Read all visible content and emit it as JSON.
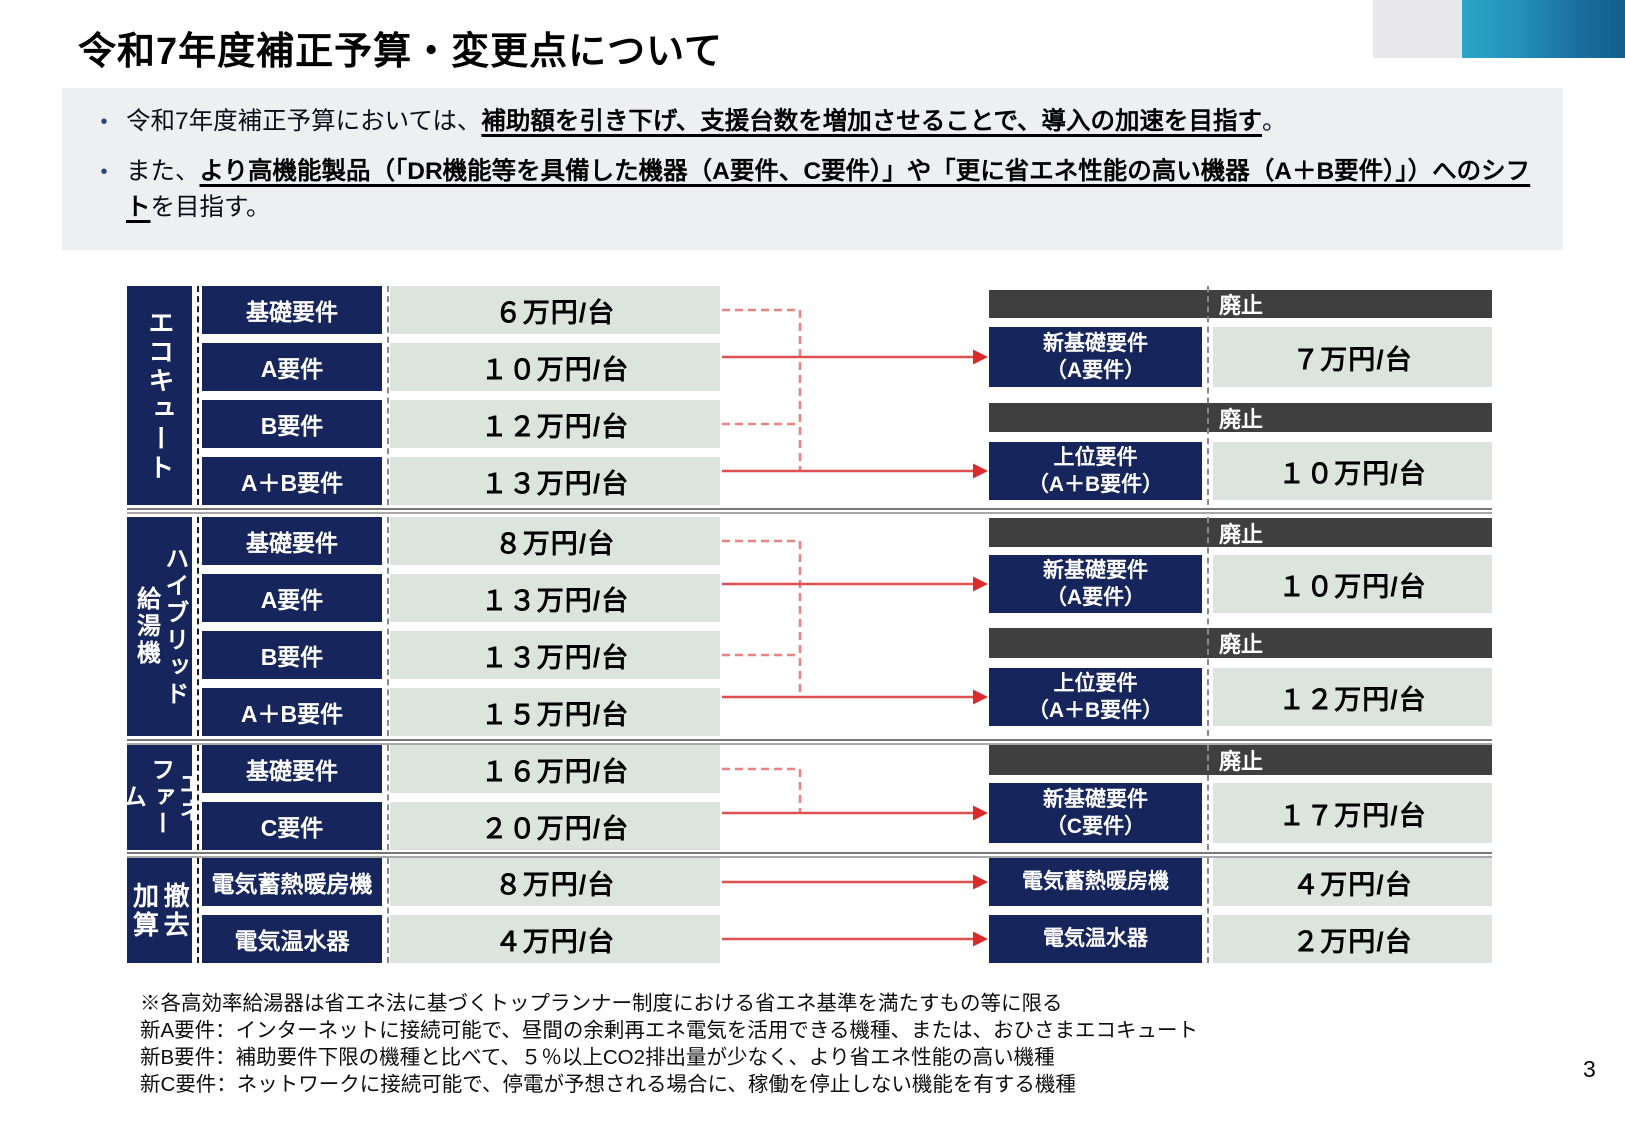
{
  "page": {
    "title": "令和7年度補正予算・変更点について",
    "page_number": "3"
  },
  "intro": {
    "bullets": [
      {
        "segments": [
          {
            "text": "令和7年度補正予算においては、",
            "em": false
          },
          {
            "text": "補助額を引き下げ、支援台数を増加させることで、導入の加速を目指す",
            "em": true
          },
          {
            "text": "。",
            "em": false
          }
        ]
      },
      {
        "segments": [
          {
            "text": "また、",
            "em": false
          },
          {
            "text": "より高機能製品（「DR機能等を具備した機器（A要件、C要件）」や「更に省エネ性能の高い機器（A＋B要件）」）へのシフト",
            "em": true
          },
          {
            "text": "を目指す。",
            "em": false
          }
        ]
      }
    ]
  },
  "table": {
    "sections": [
      {
        "category_lines": [
          "エコキュート"
        ],
        "rows": [
          {
            "label": "基礎要件",
            "value": "６万円/台"
          },
          {
            "label": "A要件",
            "value": "１０万円/台"
          },
          {
            "label": "B要件",
            "value": "１２万円/台"
          },
          {
            "label": "A＋B要件",
            "value": "１３万円/台"
          }
        ],
        "right": [
          {
            "kind": "bar",
            "label": "廃止"
          },
          {
            "kind": "box",
            "label_lines": [
              "新基礎要件",
              "（A要件）"
            ],
            "value": "７万円/台"
          },
          {
            "kind": "bar",
            "label": "廃止"
          },
          {
            "kind": "box",
            "label_lines": [
              "上位要件",
              "（A＋B要件）"
            ],
            "value": "１０万円/台"
          }
        ]
      },
      {
        "category_lines": [
          "ハイブリッド",
          "給湯機"
        ],
        "rows": [
          {
            "label": "基礎要件",
            "value": "８万円/台"
          },
          {
            "label": "A要件",
            "value": "１３万円/台"
          },
          {
            "label": "B要件",
            "value": "１３万円/台"
          },
          {
            "label": "A＋B要件",
            "value": "１５万円/台"
          }
        ],
        "right": [
          {
            "kind": "bar",
            "label": "廃止"
          },
          {
            "kind": "box",
            "label_lines": [
              "新基礎要件",
              "（A要件）"
            ],
            "value": "１０万円/台"
          },
          {
            "kind": "bar",
            "label": "廃止"
          },
          {
            "kind": "box",
            "label_lines": [
              "上位要件",
              "（A＋B要件）"
            ],
            "value": "１２万円/台"
          }
        ]
      },
      {
        "category_lines": [
          "エネ",
          "ファーム"
        ],
        "rows": [
          {
            "label": "基礎要件",
            "value": "１６万円/台"
          },
          {
            "label": "C要件",
            "value": "２０万円/台"
          }
        ],
        "right": [
          {
            "kind": "bar",
            "label": "廃止"
          },
          {
            "kind": "box",
            "label_lines": [
              "新基礎要件",
              "（C要件）"
            ],
            "value": "１７万円/台"
          }
        ]
      },
      {
        "category_lines": [
          "撤去",
          "加算"
        ],
        "rows": [
          {
            "label": "電気蓄熱暖房機",
            "value": "８万円/台"
          },
          {
            "label": "電気温水器",
            "value": "４万円/台"
          }
        ],
        "right": [
          {
            "kind": "rowbox",
            "label": "電気蓄熱暖房機",
            "value": "４万円/台"
          },
          {
            "kind": "rowbox",
            "label": "電気温水器",
            "value": "２万円/台"
          }
        ]
      }
    ]
  },
  "notes": [
    "※各高効率給湯器は省エネ法に基づくトップランナー制度における省エネ基準を満たすもの等に限る",
    "新A要件：インターネットに接続可能で、昼間の余剰再エネ電気を活用できる機種、または、おひさまエコキュート",
    "新B要件：補助要件下限の機種と比べて、５％以上CO2排出量が少なく、より省エネ性能の高い機種",
    "新C要件：ネットワークに接続可能で、停電が予想される場合に、稼働を停止しない機能を有する機種"
  ],
  "colors": {
    "navy": "#16265c",
    "abolished_gray": "#3f3f3f",
    "amount_bg": "#dce4de",
    "arrow_red": "#d92b2b",
    "arrow_red_light": "#e88484",
    "teal_band": "#2391b8",
    "intro_bg": "#edeff0"
  }
}
